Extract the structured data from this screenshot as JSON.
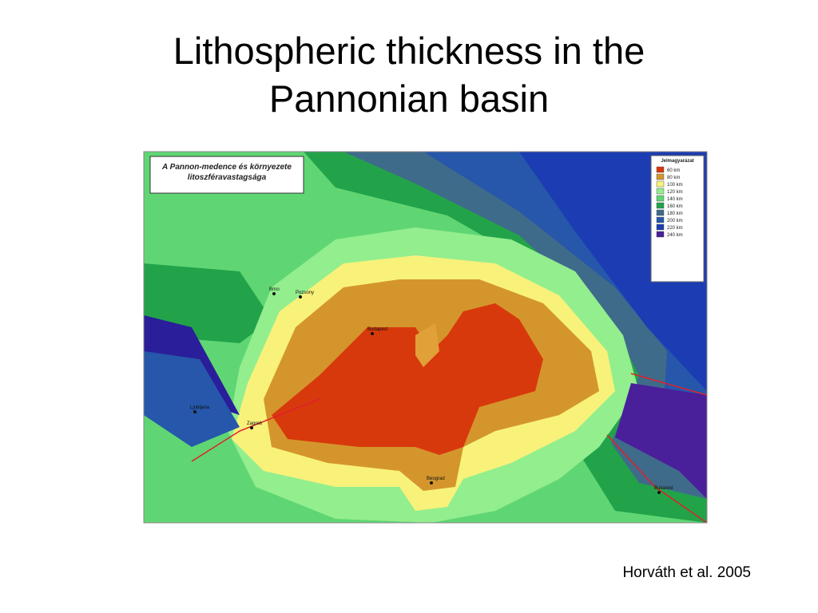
{
  "title": "Lithospheric thickness in the Pannonian basin",
  "map": {
    "title": "A Pannon-medence és környezete litoszféravastagsága",
    "legend": {
      "title": "Jelmagyarázat",
      "entries": [
        {
          "label": "60 km",
          "color": "#d8390c"
        },
        {
          "label": "80 km",
          "color": "#d4962c"
        },
        {
          "label": "100 km",
          "color": "#f8f27a"
        },
        {
          "label": "120 km",
          "color": "#93ee8e"
        },
        {
          "label": "140 km",
          "color": "#5fd673"
        },
        {
          "label": "160 km",
          "color": "#22a34a"
        },
        {
          "label": "180 km",
          "color": "#3f6b8a"
        },
        {
          "label": "200 km",
          "color": "#2657aa"
        },
        {
          "label": "220 km",
          "color": "#1b3cb2"
        },
        {
          "label": "240 km",
          "color": "#4a1f9a"
        }
      ]
    },
    "cities": [
      "Brno",
      "Pozsony",
      "Budapest",
      "Ljubljana",
      "Zagreb",
      "Beograd",
      "Bukarest"
    ]
  },
  "citation": "Horváth et al. 2005"
}
